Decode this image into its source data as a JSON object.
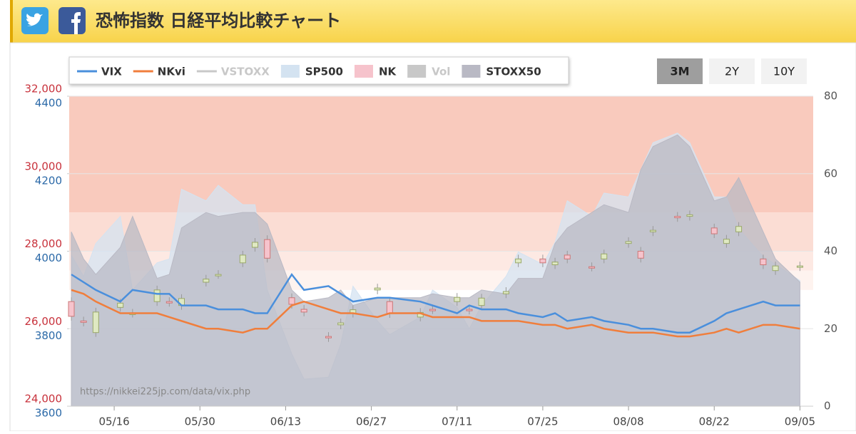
{
  "header": {
    "title": "恐怖指数 日経平均比較チャート"
  },
  "buttons": {
    "items": [
      "3M",
      "2Y",
      "10Y"
    ],
    "selected": 0
  },
  "chart_data": {
    "type": "combo",
    "watermark": "https://nikkei225jp.com/data/vix.php",
    "x": [
      "05/09",
      "05/11",
      "05/13",
      "05/17",
      "05/19",
      "05/23",
      "05/25",
      "05/27",
      "05/31",
      "06/02",
      "06/06",
      "06/08",
      "06/10",
      "06/14",
      "06/16",
      "06/20",
      "06/22",
      "06/24",
      "06/28",
      "06/30",
      "07/05",
      "07/07",
      "07/11",
      "07/13",
      "07/15",
      "07/19",
      "07/21",
      "07/25",
      "07/27",
      "07/29",
      "08/02",
      "08/04",
      "08/08",
      "08/10",
      "08/12",
      "08/16",
      "08/18",
      "08/22",
      "08/24",
      "08/26",
      "08/30",
      "09/01",
      "09/05"
    ],
    "xlim": [
      "05/09",
      "09/06"
    ],
    "xticks": [
      "05/16",
      "05/30",
      "06/13",
      "06/27",
      "07/11",
      "07/25",
      "08/08",
      "08/22",
      "09/05"
    ],
    "ylim": [
      24000,
      32000
    ],
    "yticks": [
      {
        "value": 24000,
        "label": "24,000"
      },
      {
        "value": 26000,
        "label": "26,000"
      },
      {
        "value": 28000,
        "label": "28,000"
      },
      {
        "value": 30000,
        "label": "30,000"
      },
      {
        "value": 32000,
        "label": "32,000"
      }
    ],
    "y3lim": [
      3600,
      4400
    ],
    "y3ticks": [
      3600,
      3800,
      4000,
      4200,
      4400
    ],
    "y2lim": [
      0,
      80
    ],
    "y2ticks": [
      0,
      20,
      40,
      60,
      80
    ],
    "bands": [
      {
        "from": 50,
        "to": 80,
        "color": "#f9cabd"
      },
      {
        "from": 40,
        "to": 50,
        "color": "#fbddd4"
      },
      {
        "from": 35,
        "to": 40,
        "color": "#fde9e3"
      },
      {
        "from": 30,
        "to": 35,
        "color": "#fef3ef"
      }
    ],
    "series": [
      {
        "name": "VIX",
        "type": "line",
        "axis": "y2",
        "color": "#4a8fdc",
        "values": [
          34,
          32,
          30,
          27,
          30,
          29,
          29,
          26,
          26,
          25,
          25,
          24,
          24,
          34,
          30,
          31,
          29,
          27,
          28,
          28,
          27,
          26,
          24,
          26,
          25,
          25,
          24,
          23,
          24,
          22,
          23,
          22,
          21,
          20,
          20,
          19,
          19,
          22,
          24,
          25,
          27,
          26,
          26
        ]
      },
      {
        "name": "NKvi",
        "type": "line",
        "axis": "y2",
        "color": "#f07e3c",
        "values": [
          30,
          29,
          27,
          24,
          24,
          24,
          23,
          22,
          20,
          20,
          19,
          20,
          20,
          26,
          27,
          25,
          24,
          24,
          23,
          24,
          24,
          23,
          23,
          23,
          22,
          22,
          22,
          21,
          21,
          20,
          21,
          20,
          19,
          19,
          19,
          18,
          18,
          19,
          20,
          19,
          21,
          21,
          20
        ]
      },
      {
        "name": "VSTOXX",
        "hidden": true,
        "color": "#c8c8c8"
      },
      {
        "name": "SP500",
        "type": "area",
        "axis": "y3",
        "color": "#d4e3f1",
        "values": [
          3990,
          3935,
          4020,
          4090,
          3900,
          3970,
          3980,
          4160,
          4130,
          4170,
          4120,
          4120,
          3900,
          3735,
          3670,
          3675,
          3760,
          3910,
          3820,
          3785,
          3830,
          3900,
          3855,
          3800,
          3860,
          3935,
          3998,
          3966,
          4023,
          4130,
          4090,
          4150,
          4140,
          4210,
          4280,
          4305,
          4280,
          4140,
          4140,
          4058,
          3986,
          3966,
          3924
        ]
      },
      {
        "name": "NK",
        "type": "candlestick",
        "axis": "y",
        "color": "#f6c3cc",
        "up_color": "#dfe9c2",
        "open": [
          26700,
          26200,
          25900,
          26550,
          26400,
          26700,
          26700,
          26600,
          27200,
          27400,
          27700,
          28100,
          28300,
          26800,
          26500,
          25800,
          26100,
          26400,
          27000,
          26700,
          26300,
          26500,
          26700,
          26500,
          26600,
          26900,
          27700,
          27800,
          27650,
          27900,
          27600,
          27800,
          28200,
          28000,
          28500,
          28900,
          28900,
          28600,
          28200,
          28500,
          27800,
          27500,
          27600
        ],
        "close": [
          26320,
          26170,
          26430,
          26660,
          26400,
          27000,
          26680,
          26780,
          27280,
          27400,
          27900,
          28230,
          27820,
          26630,
          26430,
          25770,
          26150,
          26490,
          27050,
          26390,
          26420,
          26490,
          26810,
          26480,
          26790,
          26960,
          27800,
          27700,
          27720,
          27800,
          27590,
          27930,
          28250,
          27820,
          28540,
          28870,
          28940,
          28450,
          28310,
          28640,
          27650,
          27620,
          27620
        ]
      },
      {
        "name": "Vol",
        "hidden": true,
        "color": "#c8c8c8"
      },
      {
        "name": "STOXX50",
        "type": "area",
        "axis": "y2",
        "color": "#b9b9c4",
        "values": [
          45,
          38,
          34,
          41,
          49,
          33,
          34,
          46,
          50,
          49,
          50,
          50,
          47,
          30,
          27,
          28,
          30,
          26,
          28,
          28,
          28,
          29,
          28,
          28,
          30,
          29,
          33,
          33,
          42,
          46,
          50,
          52,
          50,
          61,
          67,
          70,
          67,
          53,
          54,
          59,
          45,
          38,
          32
        ]
      }
    ]
  }
}
